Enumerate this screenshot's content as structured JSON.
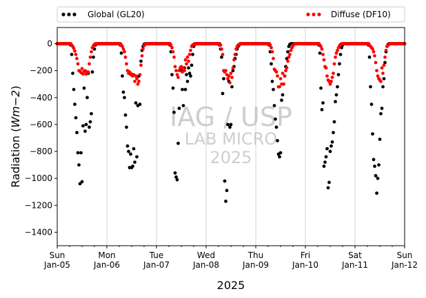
{
  "chart_data": {
    "type": "scatter",
    "xlabel": "2025",
    "ylabel_main": "Radiation (",
    "ylabel_unit": "Wm−2",
    "ylabel_close": ")",
    "x_days": [
      "Jan-05",
      "Jan-06",
      "Jan-07",
      "Jan-08",
      "Jan-09",
      "Jan-10",
      "Jan-11",
      "Jan-12"
    ],
    "x_weekdays": [
      "Sun",
      "Mon",
      "Tue",
      "Wed",
      "Thu",
      "Fri",
      "Sat",
      "Sun"
    ],
    "xlim_hours": [
      0,
      168
    ],
    "ylim": [
      -1500,
      120
    ],
    "yticks": [
      0,
      -200,
      -400,
      -600,
      -800,
      -1000,
      -1200,
      -1400
    ],
    "ytick_labels": [
      "0",
      "−200",
      "−400",
      "−600",
      "−800",
      "−1000",
      "−1200",
      "−1400"
    ],
    "grid": "vertical at day boundaries",
    "legend_placement": "above plot",
    "watermark": [
      "IAG / USP",
      "LAB MICRO",
      "2025"
    ],
    "series": [
      {
        "name": "Global (GL20)",
        "color": "#000000",
        "days": [
          {
            "x": [
              6.5,
              7,
              7.5,
              8,
              8.5,
              9,
              9.5,
              10,
              10.5,
              11,
              11.5,
              12,
              12.5,
              13,
              13.5,
              14,
              14.5,
              15,
              15.5,
              16,
              16.5,
              17,
              17.5,
              18,
              18.5,
              19
            ],
            "y": [
              -10,
              -80,
              -220,
              -340,
              -450,
              -550,
              -660,
              -810,
              -900,
              -1040,
              -810,
              -1025,
              -610,
              -330,
              -650,
              -600,
              -400,
              -220,
              -620,
              -580,
              -520,
              -210,
              -100,
              -40,
              -10,
              0
            ]
          },
          {
            "x": [
              30.5,
              31,
              31.5,
              32,
              32.5,
              33,
              33.5,
              34,
              34.5,
              35,
              35.5,
              36,
              36.5,
              37,
              37.5,
              38,
              38.5,
              39,
              39.5,
              40,
              40.5,
              41,
              41.5,
              42,
              42.5,
              43
            ],
            "y": [
              -10,
              -70,
              -240,
              -360,
              -400,
              -530,
              -620,
              -760,
              -800,
              -920,
              -820,
              -920,
              -910,
              -780,
              -880,
              -440,
              -840,
              -460,
              -240,
              -450,
              -130,
              -50,
              -20,
              -5,
              0,
              0
            ]
          },
          {
            "x": [
              54.5,
              55,
              55.5,
              56,
              56.5,
              57,
              57.5,
              58,
              58.5,
              59,
              59.5,
              60,
              60.5,
              61,
              61.5,
              62,
              62.5,
              63,
              63.5,
              64,
              64.5,
              65,
              65.5,
              66,
              66.5,
              67
            ],
            "y": [
              -10,
              -60,
              -230,
              -330,
              -510,
              -960,
              -990,
              -1010,
              -740,
              -480,
              -180,
              -200,
              -340,
              -460,
              -180,
              -340,
              -230,
              -280,
              -180,
              -220,
              -240,
              -160,
              -80,
              -20,
              -5,
              0
            ]
          },
          {
            "x": [
              78.5,
              79,
              79.5,
              80,
              80.5,
              81,
              81.5,
              82,
              82.5,
              83,
              83.5,
              84,
              84.5,
              85,
              85.5,
              86,
              86.5,
              87,
              87.5,
              88,
              88.5,
              89,
              89.5,
              90,
              90.5,
              91
            ],
            "y": [
              -10,
              -40,
              -100,
              -370,
              -260,
              -1020,
              -1170,
              -1090,
              -600,
              -280,
              -620,
              -600,
              -320,
              -200,
              -170,
              -110,
              -80,
              -40,
              -20,
              -10,
              0,
              0,
              0,
              0,
              0,
              0
            ]
          },
          {
            "x": [
              102.5,
              103,
              103.5,
              104,
              104.5,
              105,
              105.5,
              106,
              106.5,
              107,
              107.5,
              108,
              108.5,
              109,
              109.5,
              110,
              110.5,
              111,
              111.5,
              112,
              112.5,
              113,
              113.5,
              114,
              114.5,
              115
            ],
            "y": [
              -10,
              -60,
              -150,
              -280,
              -340,
              -460,
              -560,
              -620,
              -720,
              -820,
              -840,
              -810,
              -420,
              -380,
              -300,
              -240,
              -170,
              -110,
              -60,
              -20,
              -5,
              0,
              0,
              0,
              0,
              0
            ]
          },
          {
            "x": [
              126.5,
              127,
              127.5,
              128,
              128.5,
              129,
              129.5,
              130,
              130.5,
              131,
              131.5,
              132,
              132.5,
              133,
              133.5,
              134,
              134.5,
              135,
              135.5,
              136,
              136.5,
              137,
              137.5,
              138,
              138.5,
              139
            ],
            "y": [
              -10,
              -70,
              -330,
              -490,
              -440,
              -910,
              -880,
              -840,
              -780,
              -1070,
              -1030,
              -800,
              -760,
              -730,
              -660,
              -580,
              -430,
              -380,
              -320,
              -230,
              -150,
              -80,
              -30,
              -10,
              0,
              0
            ]
          },
          {
            "x": [
              150.5,
              151,
              151.5,
              152,
              152.5,
              153,
              153.5,
              154,
              154.5,
              155,
              155.5,
              156,
              156.5,
              157,
              157.5,
              158,
              158.5,
              159,
              159.5,
              160,
              160.5,
              161,
              161.5,
              162,
              162.5,
              163
            ],
            "y": [
              -10,
              -100,
              -320,
              -450,
              -670,
              -860,
              -910,
              -980,
              -1110,
              -1000,
              -900,
              -710,
              -520,
              -480,
              -320,
              -260,
              -140,
              -60,
              -20,
              -5,
              0,
              0,
              0,
              0,
              0,
              0
            ]
          }
        ]
      },
      {
        "name": "Diffuse (DF10)",
        "color": "#ff0000",
        "days": [
          {
            "x": [
              6.5,
              7,
              7.5,
              8,
              8.5,
              9,
              9.5,
              10,
              10.5,
              11,
              11.5,
              12,
              12.5,
              13,
              13.5,
              14,
              14.5,
              15,
              15.5,
              16,
              16.5,
              17,
              17.5,
              18,
              18.5,
              19
            ],
            "y": [
              0,
              -10,
              -20,
              -35,
              -55,
              -80,
              -110,
              -150,
              -200,
              -205,
              -215,
              -185,
              -225,
              -205,
              -200,
              -225,
              -210,
              -210,
              -150,
              -100,
              -60,
              -30,
              -15,
              -5,
              0,
              0
            ]
          },
          {
            "x": [
              30.5,
              31,
              31.5,
              32,
              32.5,
              33,
              33.5,
              34,
              34.5,
              35,
              35.5,
              36,
              36.5,
              37,
              37.5,
              38,
              38.5,
              39,
              39.5,
              40,
              40.5,
              41,
              41.5,
              42,
              42.5,
              43
            ],
            "y": [
              0,
              -10,
              -20,
              -40,
              -60,
              -100,
              -150,
              -200,
              -220,
              -210,
              -230,
              -225,
              -240,
              -230,
              -280,
              -240,
              -260,
              -300,
              -280,
              -230,
              -160,
              -90,
              -40,
              -15,
              -5,
              0
            ]
          },
          {
            "x": [
              54.5,
              55,
              55.5,
              56,
              56.5,
              57,
              57.5,
              58,
              58.5,
              59,
              59.5,
              60,
              60.5,
              61,
              61.5,
              62,
              62.5,
              63,
              63.5,
              64,
              64.5,
              65,
              65.5,
              66,
              66.5,
              67
            ],
            "y": [
              0,
              -10,
              -30,
              -60,
              -100,
              -170,
              -200,
              -230,
              -250,
              -200,
              -180,
              -170,
              -210,
              -180,
              -200,
              -120,
              -150,
              -100,
              -130,
              -80,
              -50,
              -20,
              -10,
              -5,
              0,
              0
            ]
          },
          {
            "x": [
              78.5,
              79,
              79.5,
              80,
              80.5,
              81,
              81.5,
              82,
              82.5,
              83,
              83.5,
              84,
              84.5,
              85,
              85.5,
              86,
              86.5,
              87,
              87.5,
              88,
              88.5,
              89,
              89.5,
              90,
              90.5,
              91
            ],
            "y": [
              0,
              -10,
              -40,
              -80,
              -200,
              -210,
              -200,
              -230,
              -260,
              -240,
              -290,
              -220,
              -250,
              -180,
              -120,
              -80,
              -40,
              -20,
              -10,
              -5,
              0,
              0,
              0,
              0,
              0,
              0
            ]
          },
          {
            "x": [
              102.5,
              103,
              103.5,
              104,
              104.5,
              105,
              105.5,
              106,
              106.5,
              107,
              107.5,
              108,
              108.5,
              109,
              109.5,
              110,
              110.5,
              111,
              111.5,
              112,
              112.5,
              113,
              113.5,
              114,
              114.5,
              115
            ],
            "y": [
              0,
              -10,
              -30,
              -60,
              -110,
              -190,
              -200,
              -210,
              -240,
              -320,
              -320,
              -260,
              -300,
              -220,
              -300,
              -240,
              -200,
              -180,
              -130,
              -100,
              -80,
              -50,
              -30,
              -15,
              -5,
              0
            ]
          },
          {
            "x": [
              126.5,
              127,
              127.5,
              128,
              128.5,
              129,
              129.5,
              130,
              130.5,
              131,
              131.5,
              132,
              132.5,
              133,
              133.5,
              134,
              134.5,
              135,
              135.5,
              136,
              136.5,
              137,
              137.5,
              138,
              138.5,
              139
            ],
            "y": [
              0,
              -10,
              -20,
              -40,
              -80,
              -120,
              -170,
              -180,
              -240,
              -270,
              -280,
              -300,
              -280,
              -250,
              -220,
              -150,
              -100,
              -70,
              -50,
              -30,
              -15,
              -5,
              0,
              0,
              0,
              0
            ]
          },
          {
            "x": [
              150.5,
              151,
              151.5,
              152,
              152.5,
              153,
              153.5,
              154,
              154.5,
              155,
              155.5,
              156,
              156.5,
              157,
              157.5,
              158,
              158.5,
              159,
              159.5,
              160,
              160.5,
              161,
              161.5,
              162,
              162.5,
              163
            ],
            "y": [
              0,
              -10,
              -20,
              -30,
              -40,
              -60,
              -90,
              -140,
              -200,
              -240,
              -260,
              -270,
              -280,
              -180,
              -220,
              -160,
              -100,
              -50,
              -20,
              -10,
              -5,
              0,
              0,
              0,
              0,
              0
            ]
          }
        ]
      }
    ],
    "night_zero_spans": [
      [
        0,
        6
      ],
      [
        19,
        30.5
      ],
      [
        43,
        54.5
      ],
      [
        67,
        78.5
      ],
      [
        91,
        102.5
      ],
      [
        115,
        126.5
      ],
      [
        139,
        150.5
      ],
      [
        163,
        168
      ]
    ]
  }
}
